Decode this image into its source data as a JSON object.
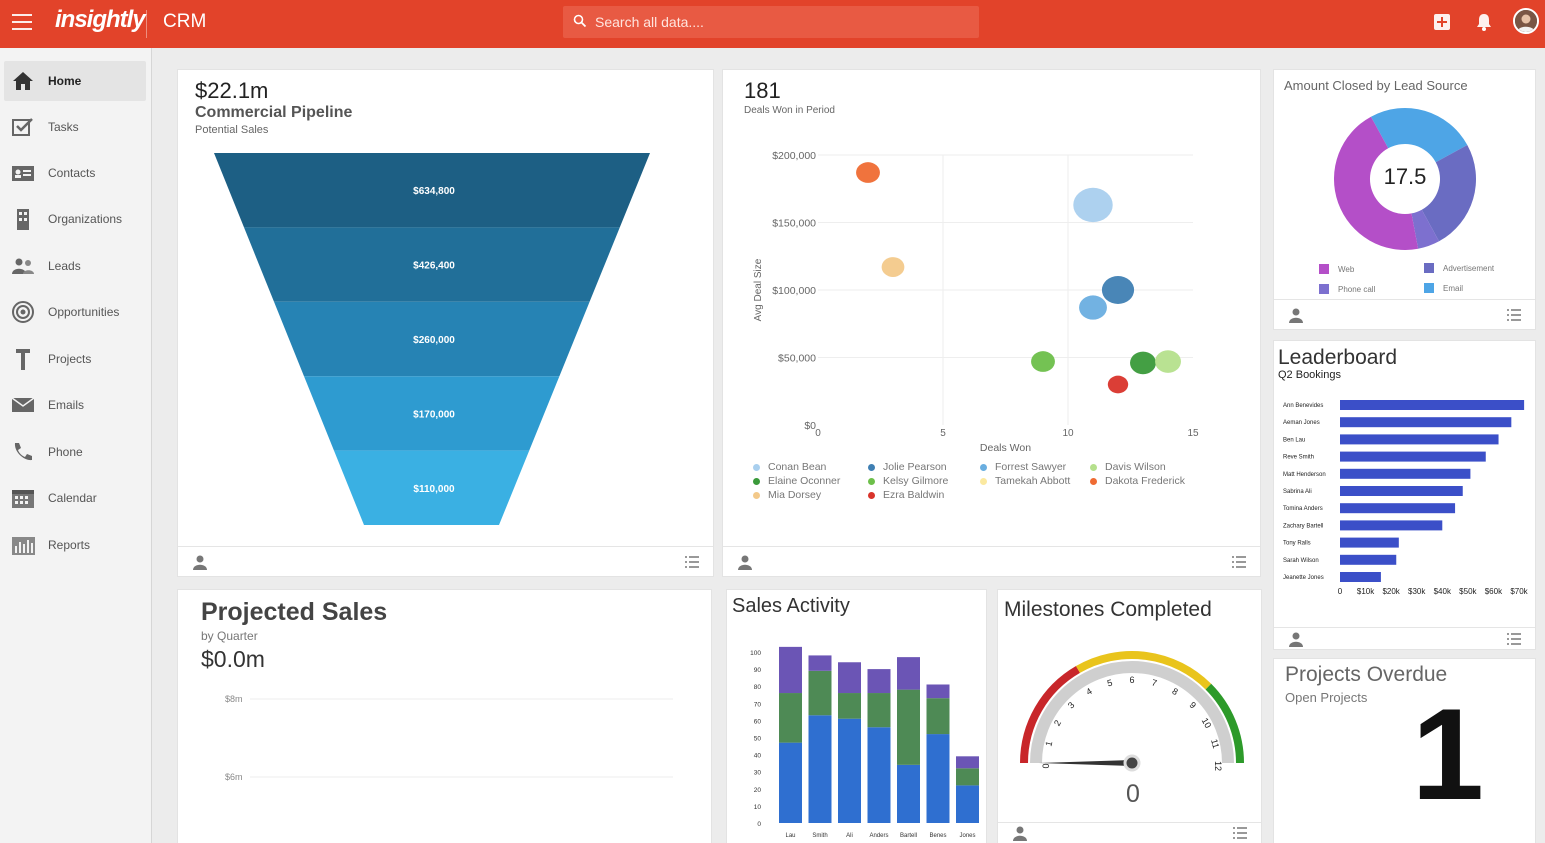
{
  "header": {
    "logo": "insightly",
    "app_name": "CRM",
    "search_placeholder": "Search all data...."
  },
  "sidebar": {
    "items": [
      {
        "label": "Home",
        "icon": "home-icon"
      },
      {
        "label": "Tasks",
        "icon": "tasks-icon"
      },
      {
        "label": "Contacts",
        "icon": "contacts-icon"
      },
      {
        "label": "Organizations",
        "icon": "organizations-icon"
      },
      {
        "label": "Leads",
        "icon": "leads-icon"
      },
      {
        "label": "Opportunities",
        "icon": "opportunities-icon"
      },
      {
        "label": "Projects",
        "icon": "projects-icon"
      },
      {
        "label": "Emails",
        "icon": "emails-icon"
      },
      {
        "label": "Phone",
        "icon": "phone-icon"
      },
      {
        "label": "Calendar",
        "icon": "calendar-icon"
      },
      {
        "label": "Reports",
        "icon": "reports-icon"
      }
    ]
  },
  "pipeline": {
    "value": "$22.1m",
    "title": "Commercial Pipeline",
    "subtitle": "Potential Sales",
    "colors": [
      "#1d5f84",
      "#216f99",
      "#2683b4",
      "#2e9bd0",
      "#3ab0e3"
    ]
  },
  "deals": {
    "value": "181",
    "subtitle": "Deals Won in Period",
    "x_label": "Deals Won",
    "y_label": "Avg Deal Size"
  },
  "lead_source": {
    "title": "Amount Closed by Lead Source",
    "center_value": "17.5"
  },
  "leaderboard": {
    "title": "Leaderboard",
    "subtitle": "Q2 Bookings"
  },
  "projected": {
    "title": "Projected Sales",
    "subtitle": "by Quarter",
    "value": "$0.0m"
  },
  "sales_activity": {
    "title": "Sales Activity"
  },
  "milestones": {
    "title": "Milestones Completed",
    "value": "0",
    "gauge_value": 0,
    "gauge_max": 12
  },
  "overdue": {
    "title": "Projects Overdue",
    "subtitle": "Open Projects",
    "value": "1"
  },
  "chart_data": [
    {
      "type": "funnel",
      "categories": [
        "$634,800",
        "$426,400",
        "$260,000",
        "$170,000",
        "$110,000"
      ],
      "values": [
        634800,
        426400,
        260000,
        170000,
        110000
      ]
    },
    {
      "type": "scatter",
      "xlabel": "Deals Won",
      "ylabel": "Avg Deal Size",
      "xlim": [
        0,
        15
      ],
      "ylim": [
        0,
        200000
      ],
      "x_ticks": [
        "0",
        "5",
        "10",
        "15"
      ],
      "y_ticks": [
        "$0",
        "$50,000",
        "$100,000",
        "$150,000",
        "$200,000"
      ],
      "series": [
        {
          "name": "Conan Bean",
          "color": "#a9cfee",
          "points": [
            {
              "x": 11,
              "y": 163000,
              "size": 3
            }
          ]
        },
        {
          "name": "Elaine Oconner",
          "color": "#3a9a3a",
          "points": [
            {
              "x": 13,
              "y": 46000,
              "size": 1.3
            }
          ]
        },
        {
          "name": "Mia Dorsey",
          "color": "#f3c98a",
          "points": [
            {
              "x": 3,
              "y": 117000,
              "size": 1
            }
          ]
        },
        {
          "name": "Jolie Pearson",
          "color": "#3f7fb3",
          "points": [
            {
              "x": 12,
              "y": 100000,
              "size": 2
            }
          ]
        },
        {
          "name": "Kelsy Gilmore",
          "color": "#6dbf4a",
          "points": [
            {
              "x": 9,
              "y": 47000,
              "size": 1.1
            }
          ]
        },
        {
          "name": "Ezra Baldwin",
          "color": "#d9342b",
          "points": [
            {
              "x": 12,
              "y": 30000,
              "size": 0.8
            }
          ]
        },
        {
          "name": "Forrest Sawyer",
          "color": "#6aaee0",
          "points": [
            {
              "x": 11,
              "y": 87000,
              "size": 1.5
            }
          ]
        },
        {
          "name": "Tamekah Abbott",
          "color": "#fbe9a0",
          "points": []
        },
        {
          "name": "Davis Wilson",
          "color": "#b5e08c",
          "points": [
            {
              "x": 14,
              "y": 47000,
              "size": 1.3
            }
          ]
        },
        {
          "name": "Dakota Frederick",
          "color": "#ef6b33",
          "points": [
            {
              "x": 2,
              "y": 187000,
              "size": 1.1
            }
          ]
        }
      ]
    },
    {
      "type": "pie",
      "series": [
        {
          "name": "Web",
          "color": "#b44fc8",
          "value": 45
        },
        {
          "name": "Advertisement",
          "color": "#6a6cc2",
          "value": 25
        },
        {
          "name": "Phone call",
          "color": "#7d70cf",
          "value": 5
        },
        {
          "name": "Email",
          "color": "#4ea5e6",
          "value": 25
        }
      ]
    },
    {
      "type": "bar",
      "orientation": "horizontal",
      "categories": [
        "Ann Benevides",
        "Aeman Jones",
        "Ben Lau",
        "Reve Smith",
        "Matt Henderson",
        "Sabrina Ali",
        "Tomina Anders",
        "Zachary Bartell",
        "Tony Ralls",
        "Sarah Wilson",
        "Jeanette Jones"
      ],
      "values": [
        72000,
        67000,
        62000,
        57000,
        51000,
        48000,
        45000,
        40000,
        23000,
        22000,
        16000
      ],
      "x_ticks": [
        "0",
        "$10k",
        "$20k",
        "$30k",
        "$40k",
        "$50k",
        "$60k",
        "$70k"
      ],
      "xlim": [
        0,
        70000
      ]
    },
    {
      "type": "line",
      "y_ticks": [
        "$8m",
        "$6m"
      ]
    },
    {
      "type": "bar",
      "stacked": true,
      "categories": [
        "Lau",
        "Smith",
        "Ali",
        "Anders",
        "Bartell",
        "Benes",
        "Jones"
      ],
      "y_ticks": [
        "0",
        "10",
        "20",
        "30",
        "40",
        "50",
        "60",
        "70",
        "80",
        "90",
        "100"
      ],
      "ylim": [
        0,
        100
      ],
      "series": [
        {
          "color": "#2f6fd0",
          "values": [
            47,
            63,
            61,
            56,
            34,
            52,
            22
          ]
        },
        {
          "color": "#4e8a55",
          "values": [
            29,
            26,
            15,
            20,
            44,
            21,
            10
          ]
        },
        {
          "color": "#6b55b5",
          "values": [
            27,
            9,
            18,
            14,
            19,
            8,
            7
          ]
        }
      ]
    }
  ]
}
